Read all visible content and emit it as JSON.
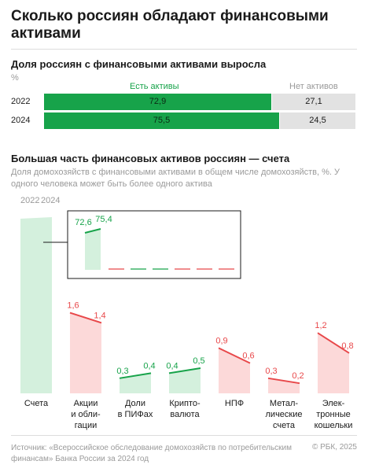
{
  "title": "Сколько россиян обладают финансовыми активами",
  "chart_data": [
    {
      "type": "bar",
      "title": "Доля россиян с финансовыми активами выросла",
      "unit": "%",
      "categories": [
        "2022",
        "2024"
      ],
      "stacked": true,
      "series": [
        {
          "name": "Есть активы",
          "values": [
            72.9,
            75.5
          ],
          "labels": [
            "72,9",
            "75,5"
          ],
          "color": "#17a34a"
        },
        {
          "name": "Нет активов",
          "values": [
            27.1,
            24.5
          ],
          "labels": [
            "27,1",
            "24,5"
          ],
          "color": "#e2e2e2"
        }
      ],
      "xlim": [
        0,
        100
      ]
    },
    {
      "type": "area",
      "title": "Большая часть финансовых активов россиян — счета",
      "subtitle": "Доля домохозяйств с финансовыми активами в общем числе домохозяйств, %. У одного человека может быть более одного актива",
      "x": [
        "2022",
        "2024"
      ],
      "categories": [
        {
          "label": "Счета",
          "v2022": 72.6,
          "v2024": 75.4,
          "l2022": "72,6",
          "l2024": "75,4"
        },
        {
          "label": "Акции и облигации",
          "v2022": 1.6,
          "v2024": 1.4,
          "l2022": "1,6",
          "l2024": "1,4"
        },
        {
          "label": "Доли в ПИФах",
          "v2022": 0.3,
          "v2024": 0.4,
          "l2022": "0,3",
          "l2024": "0,4"
        },
        {
          "label": "Криптовалюта",
          "v2022": 0.4,
          "v2024": 0.5,
          "l2022": "0,4",
          "l2024": "0,5"
        },
        {
          "label": "НПФ",
          "v2022": 0.9,
          "v2024": 0.6,
          "l2022": "0,9",
          "l2024": "0,6"
        },
        {
          "label": "Металлические счета",
          "v2022": 0.3,
          "v2024": 0.2,
          "l2022": "0,3",
          "l2024": "0,2"
        },
        {
          "label": "Электронные кошельки",
          "v2022": 1.2,
          "v2024": 0.8,
          "l2022": "1,2",
          "l2024": "0,8"
        }
      ],
      "category_lines": [
        [
          "Счета"
        ],
        [
          "Акции",
          "и обли-",
          "гации"
        ],
        [
          "Доли",
          "в ПИФах"
        ],
        [
          "Крипто-",
          "валюта"
        ],
        [
          "НПФ"
        ],
        [
          "Метал-",
          "лические",
          "счета"
        ],
        [
          "Элек-",
          "тронные",
          "кошельки"
        ]
      ],
      "colors": {
        "up": "#17a34a",
        "up_fill": "#d4f0dd",
        "down": "#e8484a",
        "down_fill": "#fcd9d9"
      }
    }
  ],
  "source": "Источник: «Всероссийское обследование домохозяйств по потребительским финансам» Банка России за 2024 год",
  "copyright": "© РБК, 2025"
}
